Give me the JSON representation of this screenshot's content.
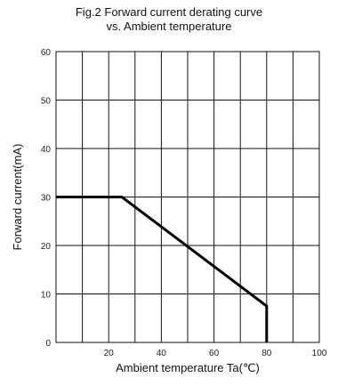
{
  "chart_data": {
    "type": "line",
    "title": "Fig.2 Forward current derating curve",
    "subtitle": "vs. Ambient temperature",
    "xlabel": "Ambient temperature Ta(℃)",
    "ylabel": "Forward current(mA)",
    "xlim": [
      0,
      100
    ],
    "ylim": [
      0,
      60
    ],
    "x_ticks": [
      20,
      40,
      60,
      80,
      100
    ],
    "y_ticks": [
      0,
      10,
      20,
      30,
      40,
      50,
      60
    ],
    "grid": true,
    "series": [
      {
        "points": [
          [
            0,
            30
          ],
          [
            25,
            30
          ],
          [
            80,
            7.5
          ],
          [
            80,
            0
          ]
        ]
      }
    ]
  }
}
